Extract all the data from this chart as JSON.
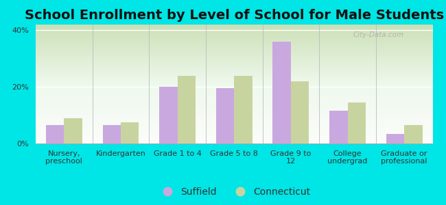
{
  "title": "School Enrollment by Level of School for Male Students",
  "categories": [
    "Nursery,\npreschool",
    "Kindergarten",
    "Grade 1 to 4",
    "Grade 5 to 8",
    "Grade 9 to\n12",
    "College\nundergrad",
    "Graduate or\nprofessional"
  ],
  "suffield": [
    6.5,
    6.5,
    20.0,
    19.5,
    36.0,
    11.5,
    3.5
  ],
  "connecticut": [
    9.0,
    7.5,
    24.0,
    24.0,
    22.0,
    14.5,
    6.5
  ],
  "suffield_color": "#c9a8e0",
  "connecticut_color": "#c8d4a0",
  "background_color": "#00e5e5",
  "ylim": [
    0,
    42
  ],
  "yticks": [
    0,
    20,
    40
  ],
  "ytick_labels": [
    "0%",
    "20%",
    "40%"
  ],
  "legend_suffield": "Suffield",
  "legend_connecticut": "Connecticut",
  "title_fontsize": 14,
  "tick_fontsize": 8,
  "legend_fontsize": 10,
  "bar_width": 0.32
}
